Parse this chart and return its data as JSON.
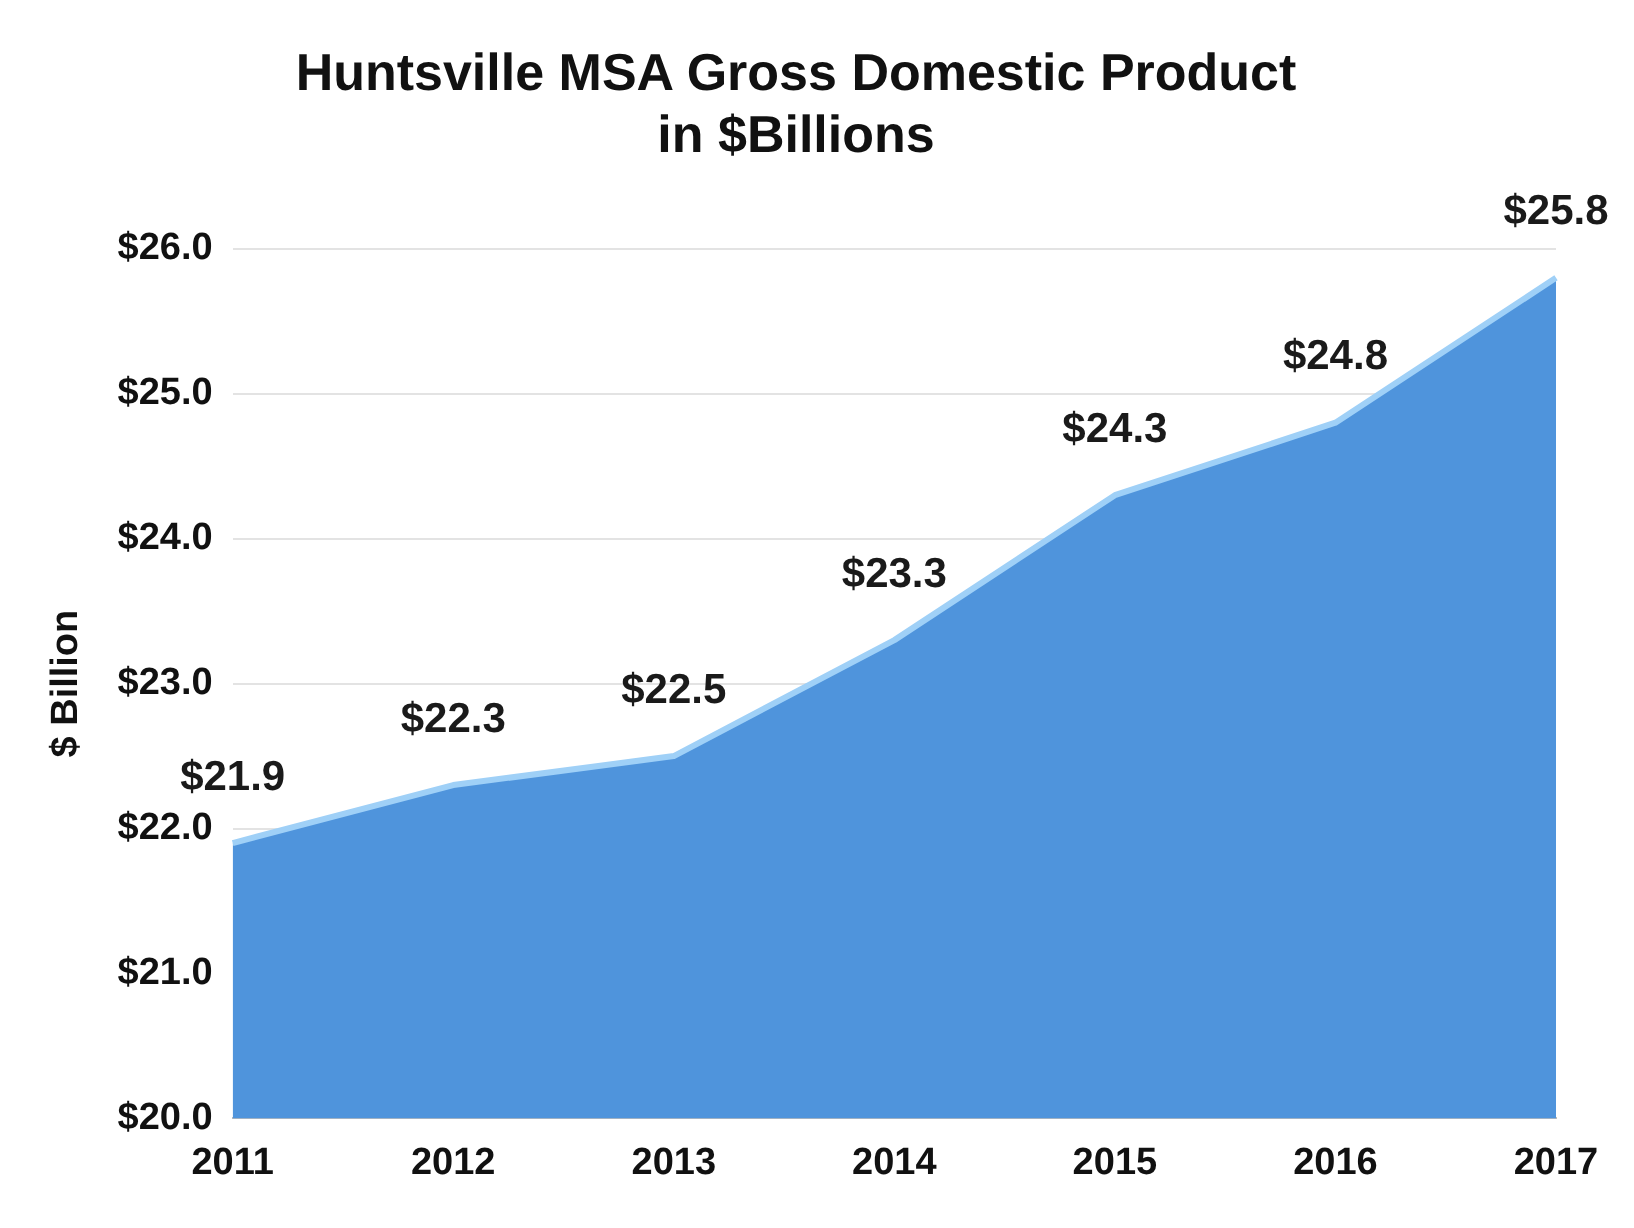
{
  "chart_data": {
    "type": "area",
    "title": "Huntsville MSA Gross Domestic Product\nin $Billions",
    "ylabel": "$ Billion",
    "categories": [
      "2011",
      "2012",
      "2013",
      "2014",
      "2015",
      "2016",
      "2017"
    ],
    "values": [
      21.9,
      22.3,
      22.5,
      23.3,
      24.3,
      24.8,
      25.8
    ],
    "value_labels": [
      "$21.9",
      "$22.3",
      "$22.5",
      "$23.3",
      "$24.3",
      "$24.8",
      "$25.8"
    ],
    "color": "#4f94dc",
    "ylim": [
      20,
      26
    ],
    "yticks": [
      {
        "value": 20,
        "label": "$20.0"
      },
      {
        "value": 21,
        "label": "$21.0"
      },
      {
        "value": 22,
        "label": "$22.0"
      },
      {
        "value": 23,
        "label": "$23.0"
      },
      {
        "value": 24,
        "label": "$24.0"
      },
      {
        "value": 25,
        "label": "$25.0"
      },
      {
        "value": 26,
        "label": "$26.0"
      }
    ],
    "grid": "y",
    "legend": false
  }
}
